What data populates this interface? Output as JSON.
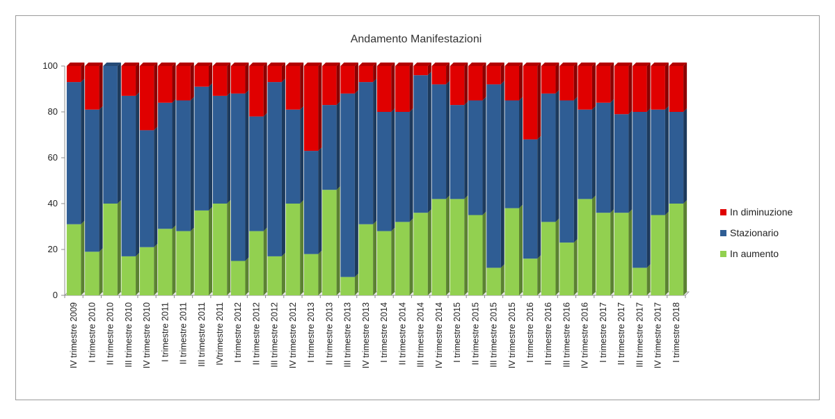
{
  "chart_data": {
    "type": "bar",
    "stacked": true,
    "percent_stacked": true,
    "title": "Andamento Manifestazioni",
    "xlabel": "",
    "ylabel": "",
    "ylim": [
      0,
      100
    ],
    "yticks": [
      0,
      20,
      40,
      60,
      80,
      100
    ],
    "grid": false,
    "legend_position": "right",
    "categories": [
      "IV trimestre 2009",
      "I trimestre 2010",
      "II trimestre 2010",
      "III trimestre  2010",
      "IV trimestre 2010",
      "I trimestre 2011",
      "II trimestre 2011",
      "III trimestre 2011",
      "IVtrimestre 2011",
      "I trimestre 2012",
      "II trimestre 2012",
      "III trimestre 2012",
      "IV trimestre 2012",
      "I trimestre 2013",
      "II trimestre 2013",
      "III trimestre 2013",
      "IV trimestre 2013",
      "I trimestre 2014",
      "II trimestre 2014",
      "III trimestre 2014",
      "IV trimestre 2014",
      "I trimestre 2015",
      "II trimestre 2015",
      "III trimestre 2015",
      "IV trimestre 2015",
      "I trimestre 2016",
      "II trimestre 2016",
      "III trimestre 2016",
      "IV trimestre 2016",
      "I trimestre 2017",
      "II trimestre 2017",
      "III trimestre 2017",
      "IV trimestre 2017",
      "I trimestre 2018"
    ],
    "series": [
      {
        "name": "In aumento",
        "color": "#92d050",
        "values": [
          31,
          19,
          40,
          17,
          21,
          29,
          28,
          37,
          40,
          15,
          28,
          17,
          40,
          18,
          46,
          8,
          31,
          28,
          32,
          36,
          42,
          42,
          35,
          12,
          38,
          16,
          32,
          23,
          42,
          36,
          36,
          12,
          35,
          40
        ]
      },
      {
        "name": "Stazionario",
        "color": "#2f5d94",
        "values": [
          62,
          62,
          60,
          70,
          51,
          55,
          57,
          54,
          47,
          73,
          50,
          76,
          41,
          45,
          37,
          80,
          62,
          52,
          48,
          60,
          50,
          41,
          50,
          80,
          47,
          52,
          56,
          62,
          39,
          48,
          43,
          68,
          46,
          40
        ]
      },
      {
        "name": "In diminuzione",
        "color": "#e00000",
        "values": [
          7,
          19,
          0,
          13,
          28,
          16,
          15,
          9,
          13,
          12,
          22,
          7,
          19,
          37,
          17,
          12,
          7,
          20,
          20,
          4,
          8,
          17,
          15,
          8,
          15,
          32,
          12,
          15,
          19,
          16,
          21,
          20,
          19,
          20
        ]
      }
    ]
  }
}
